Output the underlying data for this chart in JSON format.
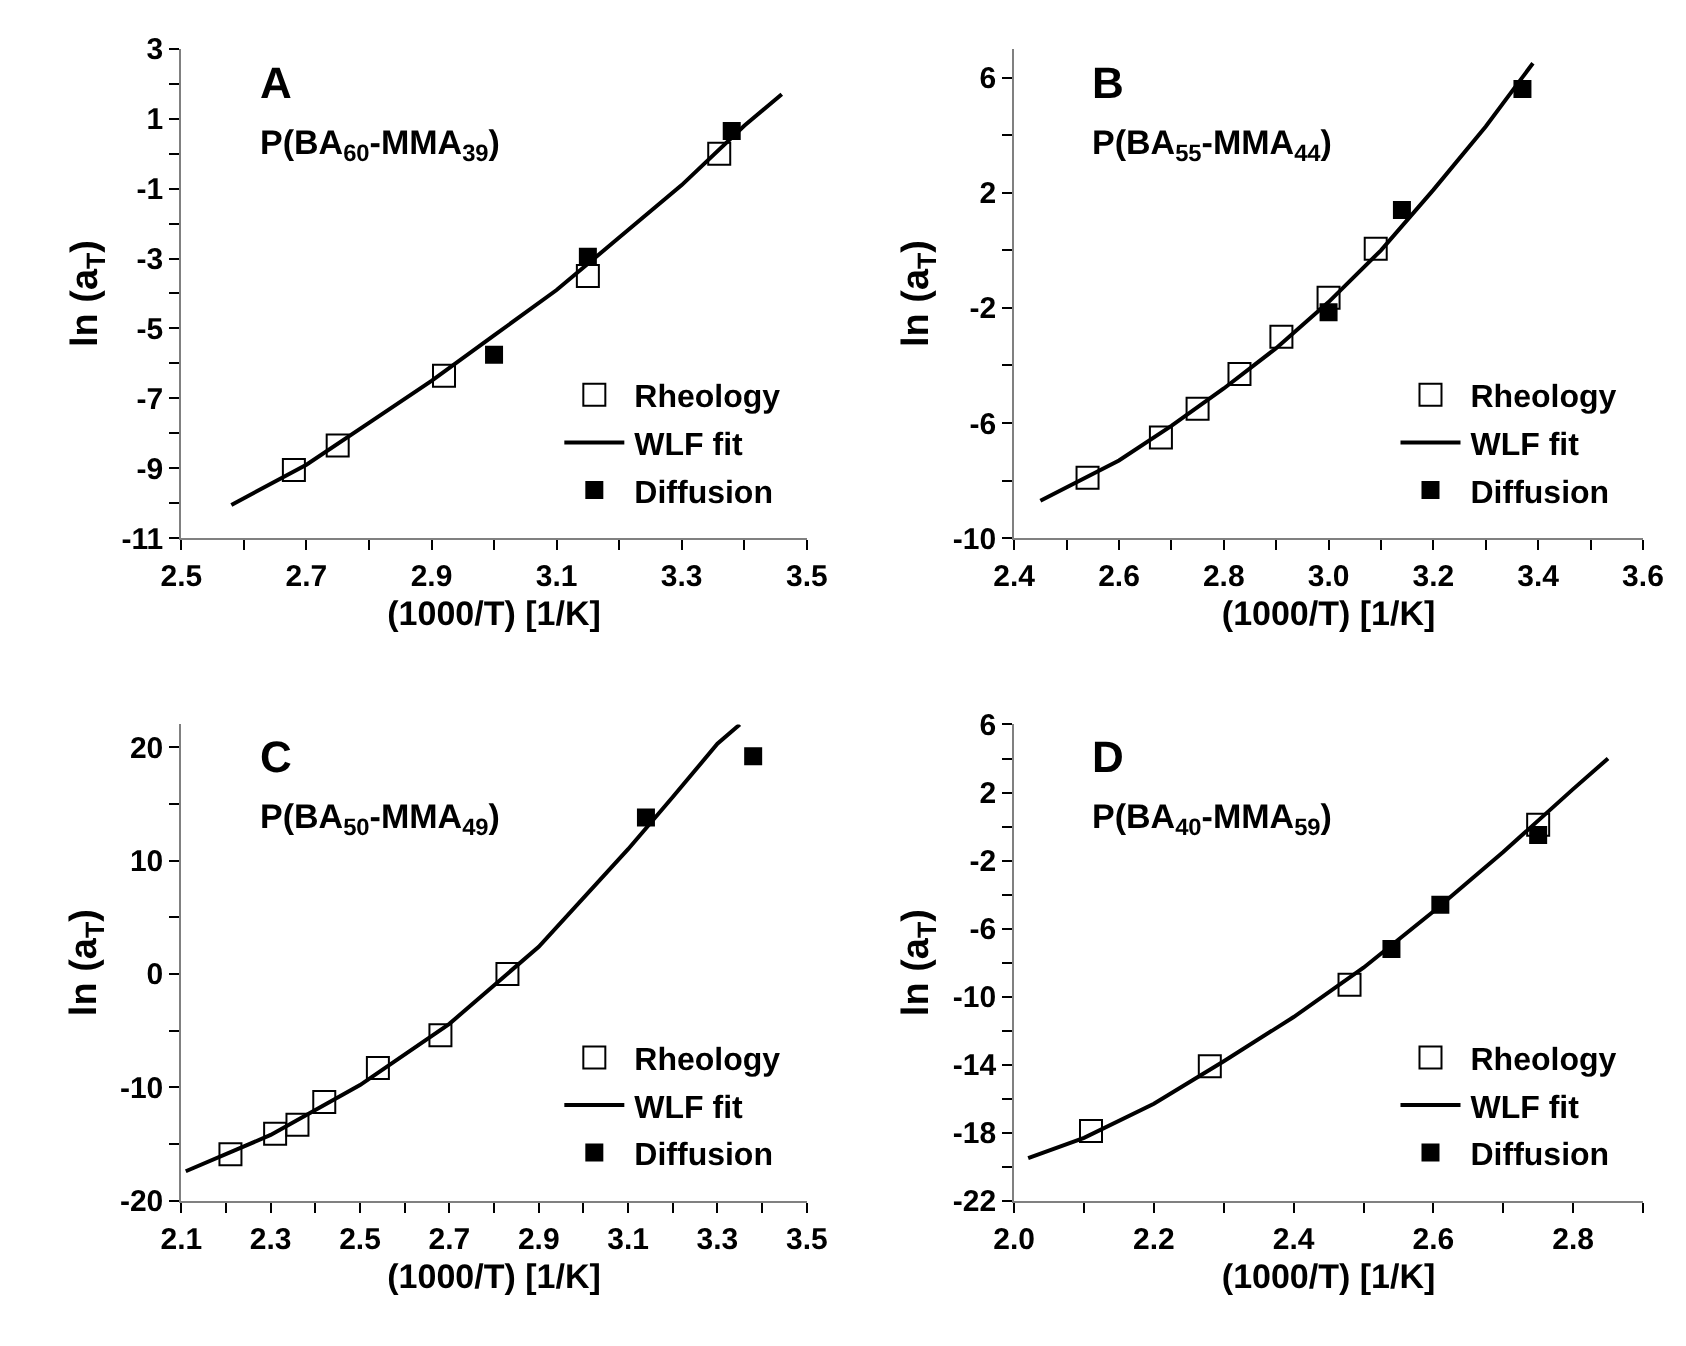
{
  "chart_data": [
    {
      "type": "scatter",
      "xlabel": "(1000/T) [1/K]",
      "ylabel": "ln (a$_{T}$)",
      "annotations": [
        "A",
        "P(BA$_{60}$-MMA$_{39}$)"
      ],
      "legend": "bottom right",
      "xlim": [
        2.5,
        3.5
      ],
      "xticks": [
        2.5,
        {
          "value": 2.6,
          "label": null
        },
        2.7,
        {
          "value": 2.8,
          "label": null
        },
        2.9,
        {
          "value": 3.0,
          "label": null
        },
        3.1,
        {
          "value": 3.2,
          "label": null
        },
        3.3,
        {
          "value": 3.4,
          "label": null
        },
        3.5
      ],
      "ylim": [
        -11,
        3
      ],
      "yticks": [
        -11,
        {
          "value": -10,
          "label": null
        },
        -9,
        {
          "value": -8,
          "label": null
        },
        -7,
        {
          "value": -6,
          "label": null
        },
        -5,
        {
          "value": -4,
          "label": null
        },
        -3,
        {
          "value": -2,
          "label": null
        },
        -1,
        {
          "value": 0,
          "label": null
        },
        1,
        {
          "value": 2,
          "label": null
        },
        3
      ],
      "series": [
        {
          "name": "Rheology",
          "marker": "square",
          "color": "#ffffff",
          "x": [
            2.68,
            2.75,
            2.92,
            3.15,
            3.36
          ],
          "values": [
            -9.05,
            -8.35,
            -6.35,
            -3.5,
            0.0
          ]
        },
        {
          "name": "WLF fit",
          "type": "line",
          "marker": "none",
          "color": "#000000",
          "x": [
            2.58,
            2.7,
            2.8,
            2.9,
            3.0,
            3.1,
            3.2,
            3.3,
            3.4,
            3.46
          ],
          "values": [
            -10.05,
            -8.9,
            -7.7,
            -6.5,
            -5.2,
            -3.9,
            -2.4,
            -0.9,
            0.8,
            1.7
          ]
        },
        {
          "name": "Diffusion",
          "marker": "square",
          "color": "#000000",
          "x": [
            3.0,
            3.15,
            3.38
          ],
          "values": [
            -5.75,
            -2.95,
            0.65
          ]
        }
      ]
    },
    {
      "type": "scatter",
      "xlabel": "(1000/T) [1/K]",
      "ylabel": "ln (a$_{T}$)",
      "annotations": [
        "B",
        "P(BA$_{55}$-MMA$_{44}$)"
      ],
      "legend": "bottom right",
      "xlim": [
        2.4,
        3.6
      ],
      "xticks": [
        2.4,
        {
          "value": 2.5,
          "label": null
        },
        2.6,
        {
          "value": 2.7,
          "label": null
        },
        2.8,
        {
          "value": 2.9,
          "label": null
        },
        {
          "value": 3.0,
          "label": "3.0"
        },
        {
          "value": 3.1,
          "label": null
        },
        3.2,
        {
          "value": 3.3,
          "label": null
        },
        3.4,
        {
          "value": 3.5,
          "label": null
        },
        3.6
      ],
      "ylim": [
        -10,
        7
      ],
      "yticks": [
        -10,
        {
          "value": -8,
          "label": null
        },
        -6,
        {
          "value": -4,
          "label": null
        },
        -2,
        {
          "value": 0,
          "label": null
        },
        2,
        {
          "value": 4,
          "label": null
        },
        6
      ],
      "series": [
        {
          "name": "Rheology",
          "marker": "square",
          "color": "#ffffff",
          "x": [
            2.54,
            2.68,
            2.75,
            2.83,
            2.91,
            3.0,
            3.09
          ],
          "values": [
            -7.9,
            -6.5,
            -5.5,
            -4.3,
            -3.0,
            -1.65,
            0.05
          ]
        },
        {
          "name": "WLF fit",
          "type": "line",
          "marker": "none",
          "color": "#000000",
          "x": [
            2.45,
            2.6,
            2.7,
            2.8,
            2.9,
            3.0,
            3.1,
            3.2,
            3.3,
            3.39
          ],
          "values": [
            -8.7,
            -7.3,
            -6.1,
            -4.8,
            -3.4,
            -1.8,
            0.0,
            2.1,
            4.3,
            6.5
          ]
        },
        {
          "name": "Diffusion",
          "marker": "square",
          "color": "#000000",
          "x": [
            3.0,
            3.14,
            3.37
          ],
          "values": [
            -2.15,
            1.4,
            5.6
          ]
        }
      ]
    },
    {
      "type": "scatter",
      "xlabel": "(1000/T) [1/K]",
      "ylabel": "ln (a$_{T}$)",
      "annotations": [
        "C",
        "P(BA$_{50}$-MMA$_{49}$)"
      ],
      "legend": "bottom right",
      "xlim": [
        2.1,
        3.5
      ],
      "xticks": [
        2.1,
        {
          "value": 2.2,
          "label": null
        },
        2.3,
        {
          "value": 2.4,
          "label": null
        },
        2.5,
        {
          "value": 2.6,
          "label": null
        },
        2.7,
        {
          "value": 2.8,
          "label": null
        },
        2.9,
        {
          "value": 3.0,
          "label": null
        },
        3.1,
        {
          "value": 3.2,
          "label": null
        },
        3.3,
        {
          "value": 3.4,
          "label": null
        },
        3.5
      ],
      "ylim": [
        -20,
        22
      ],
      "yticks": [
        -20,
        {
          "value": -15,
          "label": null
        },
        -10,
        {
          "value": -5,
          "label": null
        },
        0,
        {
          "value": 5,
          "label": null
        },
        10,
        {
          "value": 15,
          "label": null
        },
        20
      ],
      "series": [
        {
          "name": "Rheology",
          "marker": "square",
          "color": "#ffffff",
          "x": [
            2.21,
            2.31,
            2.36,
            2.42,
            2.54,
            2.68,
            2.83
          ],
          "values": [
            -15.9,
            -14.1,
            -13.3,
            -11.3,
            -8.3,
            -5.4,
            0.0
          ]
        },
        {
          "name": "WLF fit",
          "type": "line",
          "marker": "none",
          "color": "#000000",
          "x": [
            2.11,
            2.3,
            2.5,
            2.7,
            2.9,
            3.1,
            3.2,
            3.3,
            3.35
          ],
          "values": [
            -17.4,
            -14.2,
            -9.8,
            -4.4,
            2.4,
            11.0,
            15.6,
            20.3,
            22.0
          ]
        },
        {
          "name": "Diffusion",
          "marker": "square",
          "color": "#000000",
          "x": [
            3.14,
            3.38
          ],
          "values": [
            13.8,
            19.2
          ]
        }
      ]
    },
    {
      "type": "scatter",
      "xlabel": "(1000/T) [1/K]",
      "ylabel": "ln (a$_{T}$)",
      "annotations": [
        "D",
        "P(BA$_{40}$-MMA$_{59}$)"
      ],
      "legend": "bottom right",
      "xlim": [
        2.0,
        2.9
      ],
      "xticks": [
        {
          "value": 2.0,
          "label": "2.0"
        },
        {
          "value": 2.1,
          "label": null
        },
        2.2,
        {
          "value": 2.3,
          "label": null
        },
        2.4,
        {
          "value": 2.5,
          "label": null
        },
        2.6,
        {
          "value": 2.7,
          "label": null
        },
        2.8,
        {
          "value": 2.9,
          "label": null
        }
      ],
      "ylim": [
        -22,
        6
      ],
      "yticks": [
        -22,
        {
          "value": -20,
          "label": null
        },
        -18,
        {
          "value": -16,
          "label": null
        },
        -14,
        {
          "value": -12,
          "label": null
        },
        -10,
        {
          "value": -8,
          "label": null
        },
        -6,
        {
          "value": -4,
          "label": null
        },
        -2,
        {
          "value": 0,
          "label": null
        },
        2,
        {
          "value": 4,
          "label": null
        },
        6
      ],
      "series": [
        {
          "name": "Rheology",
          "marker": "square",
          "color": "#ffffff",
          "x": [
            2.11,
            2.28,
            2.48,
            2.75
          ],
          "values": [
            -17.9,
            -14.1,
            -9.3,
            0.1
          ]
        },
        {
          "name": "WLF fit",
          "type": "line",
          "marker": "none",
          "color": "#000000",
          "x": [
            2.02,
            2.1,
            2.2,
            2.3,
            2.4,
            2.5,
            2.6,
            2.7,
            2.8,
            2.85
          ],
          "values": [
            -19.5,
            -18.3,
            -16.3,
            -13.8,
            -11.2,
            -8.3,
            -5.0,
            -1.5,
            2.2,
            4.0
          ]
        },
        {
          "name": "Diffusion",
          "marker": "square",
          "color": "#000000",
          "x": [
            2.54,
            2.61,
            2.75
          ],
          "values": [
            -7.2,
            -4.6,
            -0.5
          ]
        }
      ]
    }
  ]
}
